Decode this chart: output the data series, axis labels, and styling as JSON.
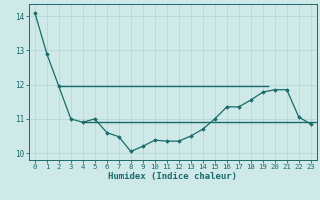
{
  "xlabel": "Humidex (Indice chaleur)",
  "background_color": "#cfe8e8",
  "grid_color": "#b0d4d4",
  "line_color": "#1a6b6b",
  "xlim": [
    -0.5,
    23.5
  ],
  "ylim": [
    9.8,
    14.35
  ],
  "yticks": [
    10,
    11,
    12,
    13,
    14
  ],
  "xticks": [
    0,
    1,
    2,
    3,
    4,
    5,
    6,
    7,
    8,
    9,
    10,
    11,
    12,
    13,
    14,
    15,
    16,
    17,
    18,
    19,
    20,
    21,
    22,
    23
  ],
  "series1_x": [
    0,
    1,
    2,
    3,
    4,
    5,
    6,
    7,
    8,
    9,
    10,
    11,
    12,
    13,
    14,
    15,
    16,
    17,
    18,
    19,
    20,
    21,
    22,
    23
  ],
  "series1_y": [
    14.1,
    12.9,
    11.95,
    11.0,
    10.9,
    11.0,
    10.6,
    10.48,
    10.05,
    10.2,
    10.38,
    10.35,
    10.35,
    10.5,
    10.7,
    11.0,
    11.35,
    11.35,
    11.55,
    11.78,
    11.85,
    11.85,
    11.05,
    10.85
  ],
  "hline1_y": 11.95,
  "hline1_x_start": 2,
  "hline1_x_end": 19.5,
  "hline2_y": 10.9,
  "hline2_x_start": 4,
  "hline2_x_end": 23.5
}
